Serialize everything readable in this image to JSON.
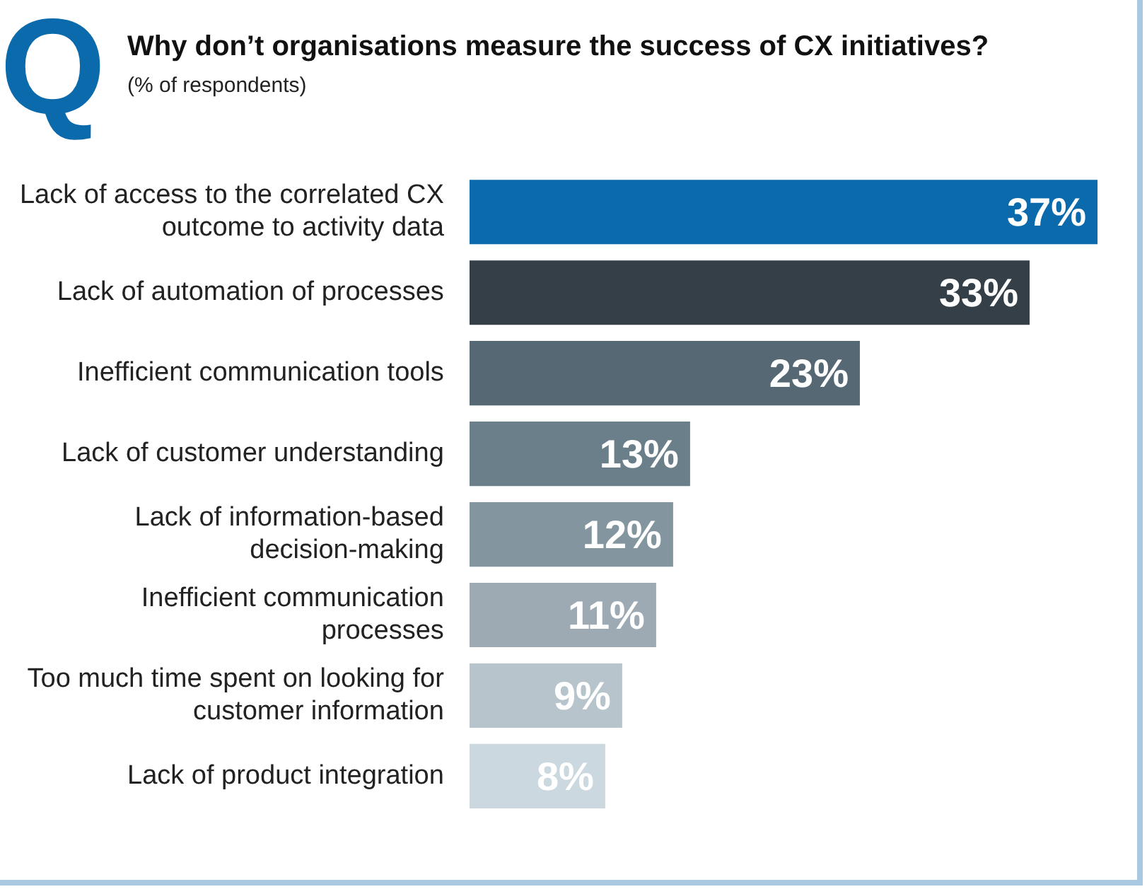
{
  "chart_data": {
    "type": "bar",
    "orientation": "horizontal",
    "title": "Why don’t organisations measure the success of CX initiatives?",
    "subtitle": "(% of respondents)",
    "annotations": [
      "Q"
    ],
    "categories": [
      "Lack of access to the correlated CX outcome to activity data",
      "Lack of automation of processes",
      "Inefficient communication tools",
      "Lack of customer understanding",
      "Lack of information-based decision-making",
      "Inefficient communication processes",
      "Too much time spent on looking for customer information",
      "Lack of product integration"
    ],
    "values": [
      37,
      33,
      23,
      13,
      12,
      11,
      9,
      8
    ],
    "value_labels": [
      "37%",
      "33%",
      "23%",
      "13%",
      "12%",
      "11%",
      "9%",
      "8%"
    ],
    "colors": [
      "#0a6aab",
      "#343f48",
      "#566874",
      "#6b7f8b",
      "#83959f",
      "#9daab3",
      "#b7c4cc",
      "#cbd8df"
    ],
    "legend": false
  }
}
